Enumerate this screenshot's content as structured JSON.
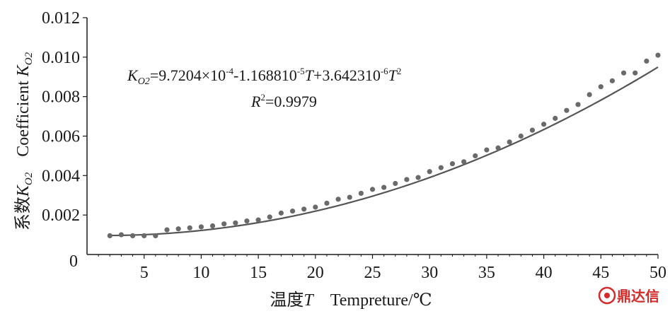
{
  "chart_data": {
    "type": "scatter",
    "xlabel_cn": "温度",
    "xlabel_var": "T",
    "xlabel_en": "Tempreture/℃",
    "ylabel_cn": "系数",
    "ylabel_en": "Coefficient",
    "ylabel_var": "K",
    "ylabel_sub": "O2",
    "xlim": [
      0,
      50
    ],
    "ylim": [
      0,
      0.012
    ],
    "x_ticks": [
      "5",
      "10",
      "15",
      "20",
      "25",
      "30",
      "35",
      "40",
      "45",
      "50"
    ],
    "y_ticks": [
      "0.002",
      "0.004",
      "0.006",
      "0.008",
      "0.010",
      "0.012"
    ],
    "origin_label": "0",
    "grid": false,
    "colors": {
      "markers": "#6a6a6a",
      "fit_line": "#555555",
      "axis": "#1a1a1a"
    },
    "series": [
      {
        "x": [
          2,
          3,
          4,
          5,
          6,
          7,
          8,
          9,
          10,
          11,
          12,
          13,
          14,
          15,
          16,
          17,
          18,
          19,
          20,
          21,
          22,
          23,
          24,
          25,
          26,
          27,
          28,
          29,
          30,
          31,
          32,
          33,
          34,
          35,
          36,
          37,
          38,
          39,
          40,
          41,
          42,
          43,
          44,
          45,
          46,
          47,
          48,
          49,
          50
        ],
        "y": [
          0.00095,
          0.001,
          0.00095,
          0.00095,
          0.00095,
          0.00125,
          0.0013,
          0.00135,
          0.0014,
          0.00145,
          0.00155,
          0.0016,
          0.0017,
          0.00175,
          0.0019,
          0.0021,
          0.0022,
          0.0023,
          0.0024,
          0.0026,
          0.0028,
          0.0029,
          0.0031,
          0.0033,
          0.0034,
          0.0036,
          0.0038,
          0.0039,
          0.0042,
          0.0044,
          0.0046,
          0.0047,
          0.005,
          0.0053,
          0.0054,
          0.0057,
          0.006,
          0.0063,
          0.0066,
          0.0069,
          0.0073,
          0.0076,
          0.0081,
          0.0085,
          0.0088,
          0.0092,
          0.0092,
          0.0098,
          0.0101
        ]
      }
    ],
    "fit": {
      "a": 0.00097204,
      "b": -1.16881e-05,
      "c": 3.6423e-06,
      "x_range": [
        2,
        50
      ]
    },
    "equation": {
      "lhs_var": "K",
      "lhs_sub": "O2",
      "part1": "=9.7204×10",
      "exp1": "-4",
      "part2": "-1.168810",
      "exp2": "-5",
      "var_t1": "T",
      "part3": "+3.642310",
      "exp3": "-6",
      "var_t2": "T",
      "exp4": "2",
      "r_var": "R",
      "r_exp": "2",
      "r_value": "=0.9979"
    }
  },
  "watermark": {
    "text": "鼎达信",
    "icon": "logo-icon"
  }
}
